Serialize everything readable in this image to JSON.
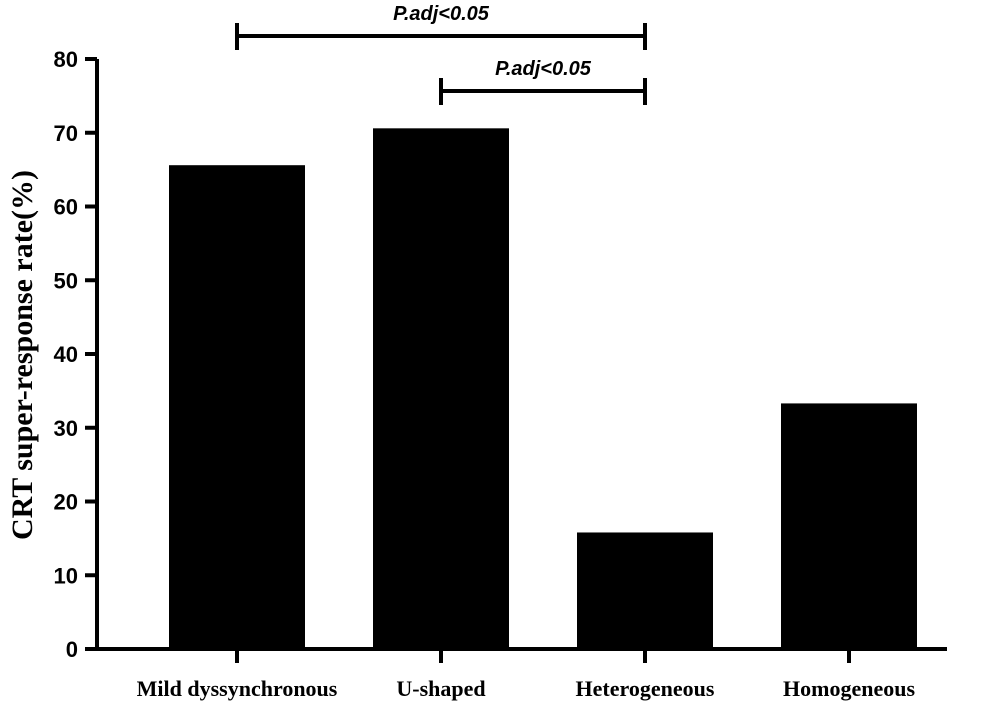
{
  "chart_data": {
    "type": "bar",
    "categories": [
      "Mild dyssynchronous",
      "U-shaped",
      "Heterogeneous",
      "Homogeneous"
    ],
    "values": [
      65.6,
      70.6,
      15.8,
      33.3
    ],
    "ylabel": "CRT super-response rate(%)",
    "xlabel": "",
    "ylim": [
      0,
      80
    ],
    "yticks": [
      0,
      10,
      20,
      30,
      40,
      50,
      60,
      70,
      80
    ],
    "bar_color": "#000000",
    "grid": false,
    "annotations": [
      {
        "text": "P.adj<0.05",
        "from": "Mild dyssynchronous",
        "to": "Heterogeneous"
      },
      {
        "text": "P.adj<0.05",
        "from": "U-shaped",
        "to": "Heterogeneous"
      }
    ]
  }
}
